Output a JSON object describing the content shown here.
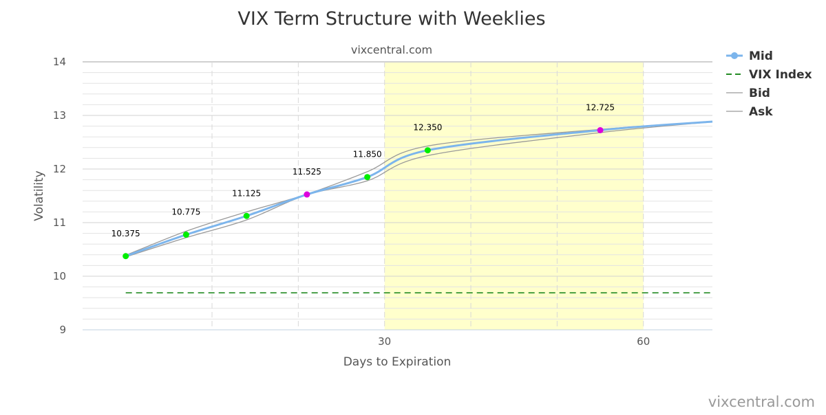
{
  "chart_data": {
    "type": "line",
    "title": "VIX Term Structure with Weeklies",
    "subtitle": "vixcentral.com",
    "credit": "vixcentral.com",
    "xlabel": "Days to Expiration",
    "ylabel": "Volatility",
    "xlim": [
      -5,
      68
    ],
    "ylim": [
      9,
      14
    ],
    "x_ticks": [
      30,
      60
    ],
    "y_ticks": [
      9,
      10,
      11,
      12,
      13,
      14
    ],
    "y_minor_step": 0.2,
    "x_grid_lines": [
      10,
      20,
      30,
      40,
      50,
      60
    ],
    "plot_band": {
      "from": 30,
      "to": 60,
      "color": "#ffffcc"
    },
    "legend_position": "top-right",
    "legend": [
      {
        "key": "mid",
        "label": "Mid"
      },
      {
        "key": "vix",
        "label": "VIX Index"
      },
      {
        "key": "bid",
        "label": "Bid"
      },
      {
        "key": "ask",
        "label": "Ask"
      }
    ],
    "series": [
      {
        "key": "mid",
        "name": "Mid",
        "color": "#7cb5ec",
        "points": [
          {
            "x": 0,
            "y": 10.375,
            "label": "10.375",
            "marker": "#00ee00"
          },
          {
            "x": 7,
            "y": 10.775,
            "label": "10.775",
            "marker": "#00ee00"
          },
          {
            "x": 14,
            "y": 11.125,
            "label": "11.125",
            "marker": "#00ee00"
          },
          {
            "x": 21,
            "y": 11.525,
            "label": "11.525",
            "marker": "#dd00dd"
          },
          {
            "x": 28,
            "y": 11.85,
            "label": "11.850",
            "marker": "#00ee00"
          },
          {
            "x": 35,
            "y": 12.35,
            "label": "12.350",
            "marker": "#00ee00"
          },
          {
            "x": 55,
            "y": 12.725,
            "label": "12.725",
            "marker": "#dd00dd"
          },
          {
            "x": 68,
            "y": 12.885
          }
        ]
      },
      {
        "key": "vix",
        "name": "VIX Index",
        "color": "#228b22",
        "points": [
          {
            "x": 0,
            "y": 9.69
          },
          {
            "x": 68,
            "y": 9.69
          }
        ]
      },
      {
        "key": "bid",
        "name": "Bid",
        "color": "#999999",
        "points": [
          {
            "x": 0,
            "y": 10.36
          },
          {
            "x": 7,
            "y": 10.72
          },
          {
            "x": 14,
            "y": 11.05
          },
          {
            "x": 21,
            "y": 11.52
          },
          {
            "x": 28,
            "y": 11.78
          },
          {
            "x": 35,
            "y": 12.25
          },
          {
            "x": 55,
            "y": 12.68
          },
          {
            "x": 68,
            "y": 12.88
          }
        ]
      },
      {
        "key": "ask",
        "name": "Ask",
        "color": "#999999",
        "points": [
          {
            "x": 0,
            "y": 10.39
          },
          {
            "x": 7,
            "y": 10.84
          },
          {
            "x": 14,
            "y": 11.2
          },
          {
            "x": 21,
            "y": 11.53
          },
          {
            "x": 28,
            "y": 11.95
          },
          {
            "x": 35,
            "y": 12.43
          },
          {
            "x": 55,
            "y": 12.74
          },
          {
            "x": 68,
            "y": 12.89
          }
        ]
      }
    ]
  }
}
